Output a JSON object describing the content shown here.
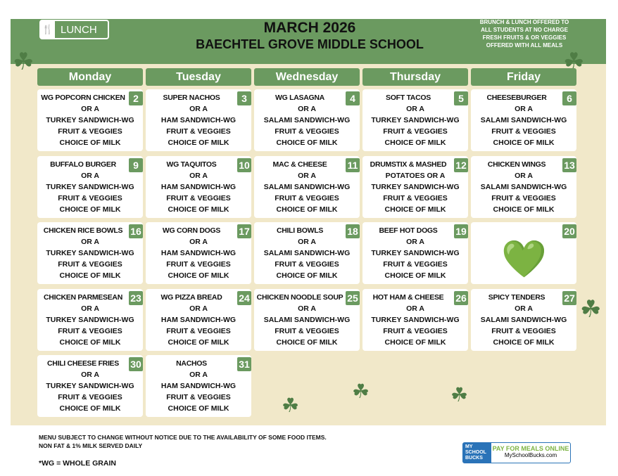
{
  "header": {
    "logo_label": "LUNCH",
    "title": "MARCH 2026",
    "school": "BAECHTEL GROVE MIDDLE SCHOOL",
    "notice": [
      "BRUNCH & LUNCH OFFERED TO",
      "ALL STUDENTS AT NO CHARGE",
      "FRESH FRUITS & OR VEGGIES",
      "OFFERED WITH ALL MEALS"
    ]
  },
  "days": [
    "Monday",
    "Tuesday",
    "Wednesday",
    "Thursday",
    "Friday"
  ],
  "weeks": [
    [
      {
        "n": "2",
        "l": [
          "WG POPCORN CHICKEN",
          "OR A",
          "TURKEY SANDWICH-WG",
          "FRUIT & VEGGIES",
          "CHOICE OF MILK"
        ]
      },
      {
        "n": "3",
        "l": [
          "SUPER NACHOS",
          "OR A",
          "HAM SANDWICH-WG",
          "FRUIT & VEGGIES",
          "CHOICE OF MILK"
        ]
      },
      {
        "n": "4",
        "l": [
          "WG LASAGNA",
          "OR A",
          "SALAMI SANDWICH-WG",
          "FRUIT & VEGGIES",
          "CHOICE OF MILK"
        ]
      },
      {
        "n": "5",
        "l": [
          "SOFT TACOS",
          "OR A",
          "TURKEY SANDWICH-WG",
          "FRUIT & VEGGIES",
          "CHOICE OF MILK"
        ]
      },
      {
        "n": "6",
        "l": [
          "CHEESEBURGER",
          "OR A",
          "SALAMI SANDWICH-WG",
          "FRUIT & VEGGIES",
          "CHOICE OF MILK"
        ]
      }
    ],
    [
      {
        "n": "9",
        "l": [
          "BUFFALO BURGER",
          "OR A",
          "TURKEY SANDWICH-WG",
          "FRUIT & VEGGIES",
          "CHOICE OF MILK"
        ]
      },
      {
        "n": "10",
        "l": [
          "WG TAQUITOS",
          "OR A",
          "HAM SANDWICH-WG",
          "FRUIT & VEGGIES",
          "CHOICE OF MILK"
        ]
      },
      {
        "n": "11",
        "l": [
          "MAC & CHEESE",
          "OR A",
          "SALAMI SANDWICH-WG",
          "FRUIT & VEGGIES",
          "CHOICE OF MILK"
        ]
      },
      {
        "n": "12",
        "l": [
          "DRUMSTIX & MASHED",
          "POTATOES OR A",
          "TURKEY SANDWICH-WG",
          "FRUIT & VEGGIES",
          "CHOICE OF MILK"
        ]
      },
      {
        "n": "13",
        "l": [
          "CHICKEN WINGS",
          "OR A",
          "SALAMI SANDWICH-WG",
          "FRUIT & VEGGIES",
          "CHOICE OF MILK"
        ]
      }
    ],
    [
      {
        "n": "16",
        "l": [
          "CHICKEN RICE BOWLS",
          "OR A",
          "TURKEY SANDWICH-WG",
          "FRUIT & VEGGIES",
          "CHOICE OF MILK"
        ]
      },
      {
        "n": "17",
        "l": [
          "WG CORN DOGS",
          "OR A",
          "HAM SANDWICH-WG",
          "FRUIT & VEGGIES",
          "CHOICE OF MILK"
        ]
      },
      {
        "n": "18",
        "l": [
          "CHILI BOWLS",
          "OR A",
          "SALAMI SANDWICH-WG",
          "FRUIT & VEGGIES",
          "CHOICE OF MILK"
        ]
      },
      {
        "n": "19",
        "l": [
          "BEEF HOT DOGS",
          "OR A",
          "TURKEY SANDWICH-WG",
          "FRUIT & VEGGIES",
          "CHOICE OF MILK"
        ]
      },
      {
        "n": "20",
        "l": []
      }
    ],
    [
      {
        "n": "23",
        "l": [
          "CHICKEN PARMESEAN",
          "OR A",
          "TURKEY SANDWICH-WG",
          "FRUIT & VEGGIES",
          "CHOICE OF MILK"
        ]
      },
      {
        "n": "24",
        "l": [
          "WG PIZZA BREAD",
          "OR A",
          "HAM SANDWICH-WG",
          "FRUIT & VEGGIES",
          "CHOICE OF MILK"
        ]
      },
      {
        "n": "25",
        "l": [
          "CHICKEN NOODLE SOUP",
          "OR A",
          "SALAMI SANDWICH-WG",
          "FRUIT & VEGGIES",
          "CHOICE OF MILK"
        ]
      },
      {
        "n": "26",
        "l": [
          "HOT HAM & CHEESE",
          "OR A",
          "TURKEY SANDWICH-WG",
          "FRUIT & VEGGIES",
          "CHOICE OF MILK"
        ]
      },
      {
        "n": "27",
        "l": [
          "SPICY TENDERS",
          "OR A",
          "SALAMI SANDWICH-WG",
          "FRUIT & VEGGIES",
          "CHOICE OF MILK"
        ]
      }
    ],
    [
      {
        "n": "30",
        "l": [
          "CHILI CHEESE FRIES",
          "OR A",
          "TURKEY SANDWICH-WG",
          "FRUIT & VEGGIES",
          "CHOICE OF MILK"
        ]
      },
      {
        "n": "31",
        "l": [
          "NACHOS",
          "OR A",
          "HAM SANDWICH-WG",
          "FRUIT & VEGGIES",
          "CHOICE OF MILK"
        ]
      }
    ]
  ],
  "footer": {
    "line1": "MENU SUBJECT TO CHANGE WITHOUT NOTICE DUE TO THE AVAILABILITY OF SOME FOOD ITEMS.",
    "line2": "NON FAT & 1% MILK SERVED DAILY",
    "wg": "*WG = WHOLE GRAIN"
  },
  "msb": {
    "logo": "MY SCHOOL BUCKS",
    "cta": "PAY FOR MEALS ONLINE",
    "site": "MySchoolBucks.com"
  },
  "colors": {
    "green": "#6b9a60",
    "cream": "#f1e8c9",
    "blue": "#2a73b8"
  }
}
